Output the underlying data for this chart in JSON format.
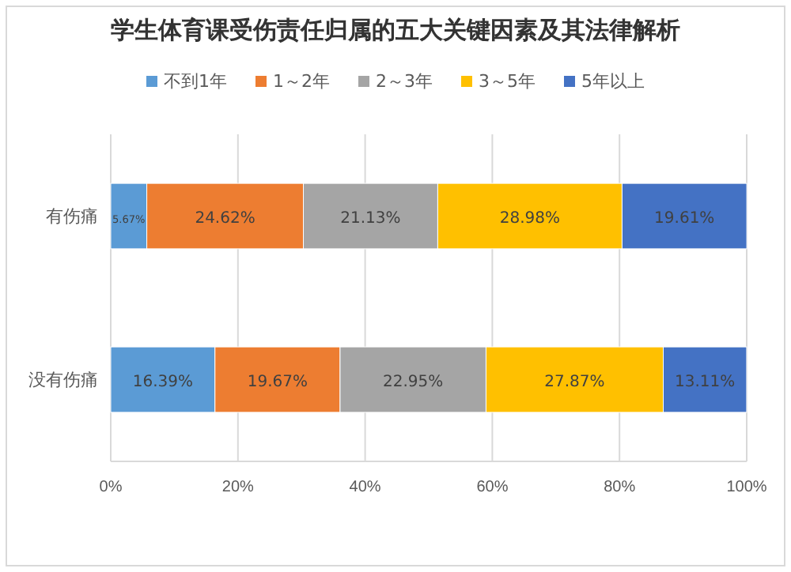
{
  "chart_data": {
    "type": "bar",
    "orientation": "horizontal",
    "stacked": true,
    "title": "学生体育课受伤责任归属的五大关键因素及其法律解析",
    "categories": [
      "有伤痛",
      "没有伤痛"
    ],
    "series": [
      {
        "name": "不到1年",
        "color": "#5b9bd5",
        "values": [
          5.67,
          16.39
        ],
        "value_labels": [
          "5.67%",
          "16.39%"
        ]
      },
      {
        "name": "1～2年",
        "color": "#ed7d31",
        "values": [
          24.62,
          19.67
        ],
        "value_labels": [
          "24.62%",
          "19.67%"
        ]
      },
      {
        "name": "2～3年",
        "color": "#a5a5a5",
        "values": [
          21.13,
          22.95
        ],
        "value_labels": [
          "21.13%",
          "22.95%"
        ]
      },
      {
        "name": "3～5年",
        "color": "#ffc000",
        "values": [
          28.98,
          27.87
        ],
        "value_labels": [
          "28.98%",
          "27.87%"
        ]
      },
      {
        "name": "5年以上",
        "color": "#4472c4",
        "values": [
          19.61,
          13.11
        ],
        "value_labels": [
          "19.61%",
          "13.11%"
        ]
      }
    ],
    "xlim": [
      0,
      100
    ],
    "xticks": [
      {
        "value": 0,
        "label": "0%"
      },
      {
        "value": 20,
        "label": "20%"
      },
      {
        "value": 40,
        "label": "40%"
      },
      {
        "value": 60,
        "label": "60%"
      },
      {
        "value": 80,
        "label": "80%"
      },
      {
        "value": 100,
        "label": "100%"
      }
    ],
    "grid": "x",
    "legend": "top"
  }
}
